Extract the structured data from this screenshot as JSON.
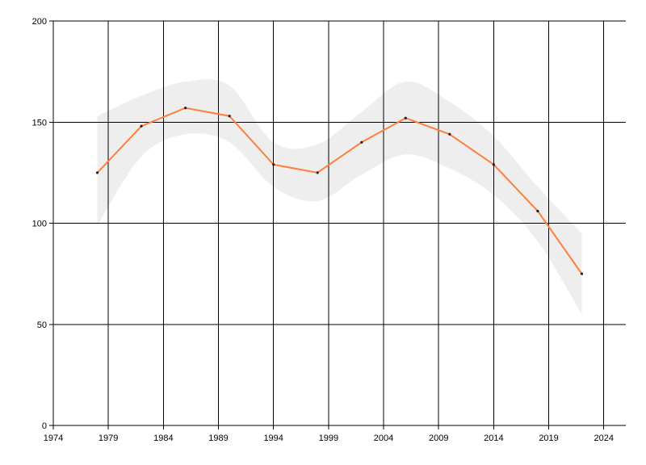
{
  "chart_data": {
    "type": "line",
    "title": "",
    "xlabel": "",
    "ylabel": "",
    "xlim": [
      1974,
      2026
    ],
    "ylim": [
      0,
      200
    ],
    "grid": true,
    "x_ticks": [
      1974,
      1979,
      1984,
      1989,
      1994,
      1999,
      2004,
      2009,
      2014,
      2019,
      2024
    ],
    "y_ticks": [
      0,
      50,
      100,
      150,
      200
    ],
    "x_tick_labels": [
      "1974",
      "1979",
      "1984",
      "1989",
      "1994",
      "1999",
      "2004",
      "2009",
      "2014",
      "2019",
      "2024"
    ],
    "y_tick_labels": [
      "0",
      "50",
      "100",
      "150",
      "200"
    ],
    "series": [
      {
        "x": [
          1978,
          1982,
          1986,
          1990,
          1994,
          1998,
          2002,
          2006,
          2010,
          2014,
          2018,
          2022
        ],
        "values": [
          125,
          148,
          157,
          153,
          129,
          125,
          140,
          152,
          144,
          129,
          106,
          75
        ],
        "color": "#ff7f3f"
      }
    ],
    "band": {
      "x": [
        1978,
        1982,
        1986,
        1990,
        1994,
        1998,
        2002,
        2006,
        2010,
        2014,
        2018,
        2022
      ],
      "upper": [
        153,
        163,
        170,
        168,
        140,
        139,
        155,
        170,
        160,
        143,
        118,
        95
      ],
      "lower": [
        99,
        133,
        144,
        140,
        118,
        111,
        124,
        134,
        127,
        114,
        91,
        55
      ],
      "color": "#eeeeee"
    },
    "axis_color": "#000000",
    "grid_color": "#000000"
  }
}
